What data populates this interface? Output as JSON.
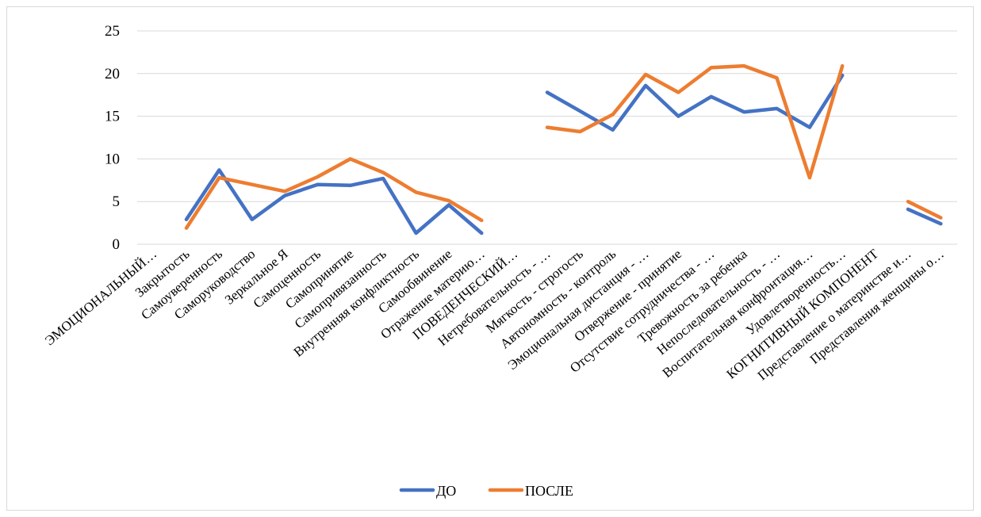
{
  "chart_data": {
    "type": "line",
    "title": "",
    "xlabel": "",
    "ylabel": "",
    "ylim": [
      0,
      25
    ],
    "yticks": [
      0,
      5,
      10,
      15,
      20,
      25
    ],
    "grid": "horizontal",
    "legend": "bottom",
    "categories": [
      "ЭМОЦИОНАЛЬНЫЙ…",
      "Закрытость",
      "Самоуверенность",
      "Саморуководство",
      "Зеркальное Я",
      "Самоценность",
      "Самопринятие",
      "Самопривязанность",
      "Внутренняя конфликтность",
      "Самообвинение",
      "Отражение материю…",
      "ПОВЕДЕНЧЕСКИЙ…",
      "Нетребовательность - …",
      "Мягкость - строгость",
      "Автономность - контроль",
      "Эмоциональная дистанция - …",
      "Отвержение - принятие",
      "Отсутствие сотрудничества - …",
      "Тревожность за ребенка",
      "Непоследовательность - …",
      "Воспитательная конфронтация…",
      "Удовлетворенность…",
      "КОГНИТИВНЫЙ КОМПОНЕНТ",
      "Представление о материнстве и…",
      "Представления женщины о…"
    ],
    "series": [
      {
        "name": "ДО",
        "color": "#4472c4",
        "values": [
          null,
          2.9,
          8.7,
          2.9,
          5.7,
          7.0,
          6.9,
          7.7,
          1.3,
          4.6,
          1.3,
          null,
          17.8,
          15.6,
          13.4,
          18.6,
          15.0,
          17.3,
          15.5,
          15.9,
          13.7,
          19.8,
          null,
          4.1,
          2.4
        ]
      },
      {
        "name": "ПОСЛЕ",
        "color": "#ed7d31",
        "values": [
          null,
          1.9,
          7.8,
          7.0,
          6.2,
          7.9,
          10.0,
          8.4,
          6.1,
          5.1,
          2.8,
          null,
          13.7,
          13.2,
          15.2,
          19.9,
          17.8,
          20.7,
          20.9,
          19.5,
          7.8,
          20.9,
          null,
          5.0,
          3.1
        ]
      }
    ]
  }
}
